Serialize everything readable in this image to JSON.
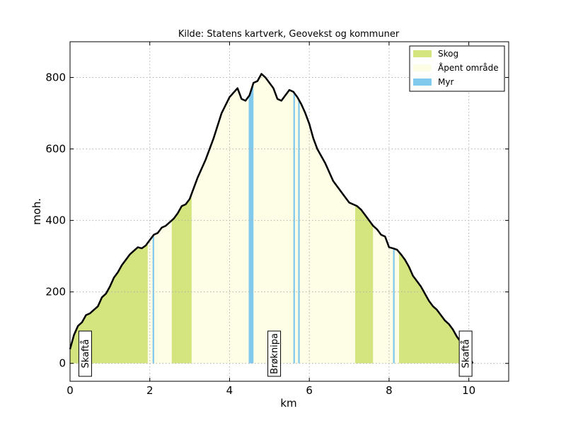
{
  "chart_data": {
    "type": "area",
    "title": "Kilde: Statens kartverk, Geovekst og kommuner",
    "xlabel": "km",
    "ylabel": "moh.",
    "xlim": [
      0,
      11
    ],
    "ylim": [
      -50,
      900
    ],
    "xticks": [
      0,
      2,
      4,
      6,
      8,
      10
    ],
    "yticks": [
      0,
      200,
      400,
      600,
      800
    ],
    "grid": true,
    "legend_position": "top-right",
    "legend": [
      {
        "name": "Skog",
        "color": "#d4e57f"
      },
      {
        "name": "Åpent område",
        "color": "#fdfee5"
      },
      {
        "name": "Myr",
        "color": "#82c9ee"
      }
    ],
    "profile": {
      "x": [
        0.0,
        0.1,
        0.2,
        0.3,
        0.4,
        0.5,
        0.6,
        0.7,
        0.8,
        0.9,
        1.0,
        1.1,
        1.2,
        1.3,
        1.4,
        1.5,
        1.6,
        1.7,
        1.8,
        1.9,
        2.0,
        2.1,
        2.2,
        2.3,
        2.4,
        2.5,
        2.6,
        2.7,
        2.8,
        2.9,
        3.0,
        3.2,
        3.4,
        3.6,
        3.8,
        4.0,
        4.2,
        4.3,
        4.4,
        4.5,
        4.6,
        4.7,
        4.8,
        4.9,
        5.0,
        5.1,
        5.2,
        5.3,
        5.4,
        5.5,
        5.6,
        5.7,
        5.8,
        5.9,
        6.0,
        6.1,
        6.2,
        6.4,
        6.6,
        6.8,
        7.0,
        7.2,
        7.3,
        7.4,
        7.5,
        7.6,
        7.7,
        7.8,
        7.9,
        8.0,
        8.1,
        8.2,
        8.3,
        8.4,
        8.5,
        8.6,
        8.7,
        8.8,
        8.9,
        9.0,
        9.1,
        9.2,
        9.3,
        9.4,
        9.5,
        9.6,
        9.7,
        9.8,
        9.9,
        10.0,
        10.1
      ],
      "y": [
        40,
        80,
        105,
        115,
        135,
        140,
        150,
        160,
        185,
        195,
        215,
        240,
        255,
        275,
        290,
        305,
        315,
        325,
        322,
        330,
        345,
        360,
        365,
        380,
        385,
        395,
        405,
        420,
        440,
        445,
        460,
        520,
        570,
        630,
        700,
        745,
        770,
        740,
        735,
        750,
        785,
        790,
        810,
        800,
        785,
        770,
        740,
        735,
        750,
        765,
        760,
        745,
        725,
        700,
        670,
        630,
        600,
        560,
        510,
        480,
        450,
        440,
        430,
        415,
        400,
        385,
        375,
        360,
        355,
        325,
        322,
        318,
        305,
        290,
        270,
        245,
        230,
        215,
        195,
        175,
        160,
        150,
        135,
        120,
        110,
        95,
        75,
        60,
        40,
        20,
        0
      ]
    },
    "land_cover": [
      {
        "type": "Skog",
        "from": 0.0,
        "to": 1.95
      },
      {
        "type": "Åpent område",
        "from": 1.95,
        "to": 2.55
      },
      {
        "type": "Skog",
        "from": 2.55,
        "to": 3.05
      },
      {
        "type": "Åpent område",
        "from": 3.05,
        "to": 7.15
      },
      {
        "type": "Skog",
        "from": 7.15,
        "to": 7.6
      },
      {
        "type": "Åpent område",
        "from": 7.6,
        "to": 8.25
      },
      {
        "type": "Skog",
        "from": 8.25,
        "to": 10.1
      },
      {
        "type": "Myr",
        "from": 2.07,
        "to": 2.11
      },
      {
        "type": "Myr",
        "from": 4.48,
        "to": 4.6
      },
      {
        "type": "Myr",
        "from": 5.6,
        "to": 5.64
      },
      {
        "type": "Myr",
        "from": 5.72,
        "to": 5.76
      },
      {
        "type": "Myr",
        "from": 8.1,
        "to": 8.14
      }
    ],
    "places": [
      {
        "name": "Skaftå",
        "x": 0.38
      },
      {
        "name": "Brøknipa",
        "x": 5.12
      },
      {
        "name": "Skaftå",
        "x": 9.92
      }
    ]
  }
}
